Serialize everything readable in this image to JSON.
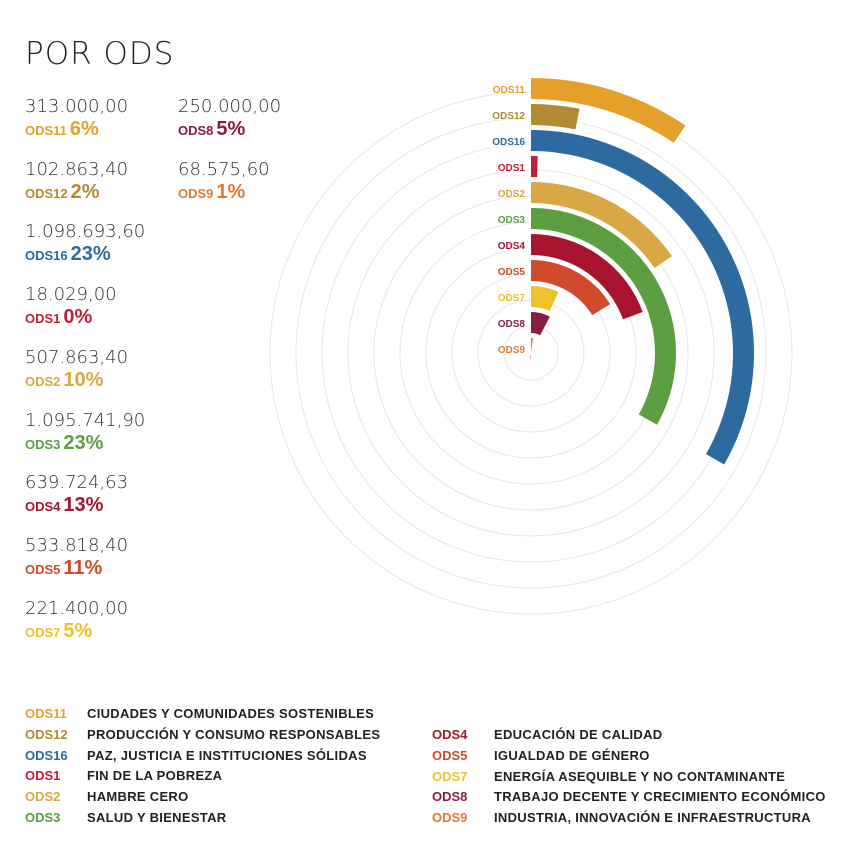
{
  "title": "POR ODS",
  "stats_col1": [
    {
      "amount": "313.000,00",
      "code": "ODS11",
      "pct": "6%",
      "color": "#E5A02B"
    },
    {
      "amount": "102.863,40",
      "code": "ODS12",
      "pct": "2%",
      "color": "#B18A33"
    },
    {
      "amount": "1.098.693,60",
      "code": "ODS16",
      "pct": "23%",
      "color": "#2D6AA0"
    },
    {
      "amount": "18.029,00",
      "code": "ODS1",
      "pct": "0%",
      "color": "#C21E3A"
    },
    {
      "amount": "507.863,40",
      "code": "ODS2",
      "pct": "10%",
      "color": "#D9A744"
    },
    {
      "amount": "1.095.741,90",
      "code": "ODS3",
      "pct": "23%",
      "color": "#5E9E43"
    },
    {
      "amount": "639.724,63",
      "code": "ODS4",
      "pct": "13%",
      "color": "#A8132E"
    },
    {
      "amount": "533.818,40",
      "code": "ODS5",
      "pct": "11%",
      "color": "#D04A2C"
    },
    {
      "amount": "221.400,00",
      "code": "ODS7",
      "pct": "5%",
      "color": "#EEC22A"
    }
  ],
  "stats_col2": [
    {
      "amount": "250.000,00",
      "code": "ODS8",
      "pct": "5%",
      "color": "#8C1B42"
    },
    {
      "amount": "68.575,60",
      "code": "ODS9",
      "pct": "1%",
      "color": "#DF7A35"
    }
  ],
  "chart_data": {
    "type": "radial-bar",
    "categories": [
      "ODS11",
      "ODS12",
      "ODS16",
      "ODS1",
      "ODS2",
      "ODS3",
      "ODS4",
      "ODS5",
      "ODS7",
      "ODS8",
      "ODS9"
    ],
    "values": [
      313000.0,
      102863.4,
      1098693.6,
      18029.0,
      507863.4,
      1095741.9,
      639724.63,
      533818.4,
      221400.0,
      250000.0,
      68575.6
    ],
    "colors": [
      "#E5A02B",
      "#B18A33",
      "#2D6AA0",
      "#C21E3A",
      "#D9A744",
      "#5E9E43",
      "#A8132E",
      "#D04A2C",
      "#EEC22A",
      "#8C1B42",
      "#DF7A35"
    ],
    "grid": true
  },
  "legend_left": [
    {
      "code": "ODS11",
      "desc": "CIUDADES Y COMUNIDADES SOSTENIBLES",
      "color": "#E5A02B"
    },
    {
      "code": "ODS12",
      "desc": "PRODUCCIÓN Y CONSUMO RESPONSABLES",
      "color": "#B18A33"
    },
    {
      "code": "ODS16",
      "desc": "PAZ, JUSTICIA E INSTITUCIONES SÓLIDAS",
      "color": "#2D6AA0"
    },
    {
      "code": "ODS1",
      "desc": "FIN DE LA POBREZA",
      "color": "#C21E3A"
    },
    {
      "code": "ODS2",
      "desc": "HAMBRE CERO",
      "color": "#D9A744"
    },
    {
      "code": "ODS3",
      "desc": "SALUD Y BIENESTAR",
      "color": "#5E9E43"
    }
  ],
  "legend_right": [
    {
      "code": "ODS4",
      "desc": "EDUCACIÓN DE CALIDAD",
      "color": "#A8132E"
    },
    {
      "code": "ODS5",
      "desc": "IGUALDAD DE GÉNERO",
      "color": "#D04A2C"
    },
    {
      "code": "ODS7",
      "desc": "ENERGÍA ASEQUIBLE Y NO CONTAMINANTE",
      "color": "#EEC22A"
    },
    {
      "code": "ODS8",
      "desc": "TRABAJO DECENTE Y CRECIMIENTO ECONÓMICO",
      "color": "#8C1B42"
    },
    {
      "code": "ODS9",
      "desc": "INDUSTRIA, INNOVACIÓN E INFRAESTRUCTURA",
      "color": "#DF7A35"
    }
  ]
}
